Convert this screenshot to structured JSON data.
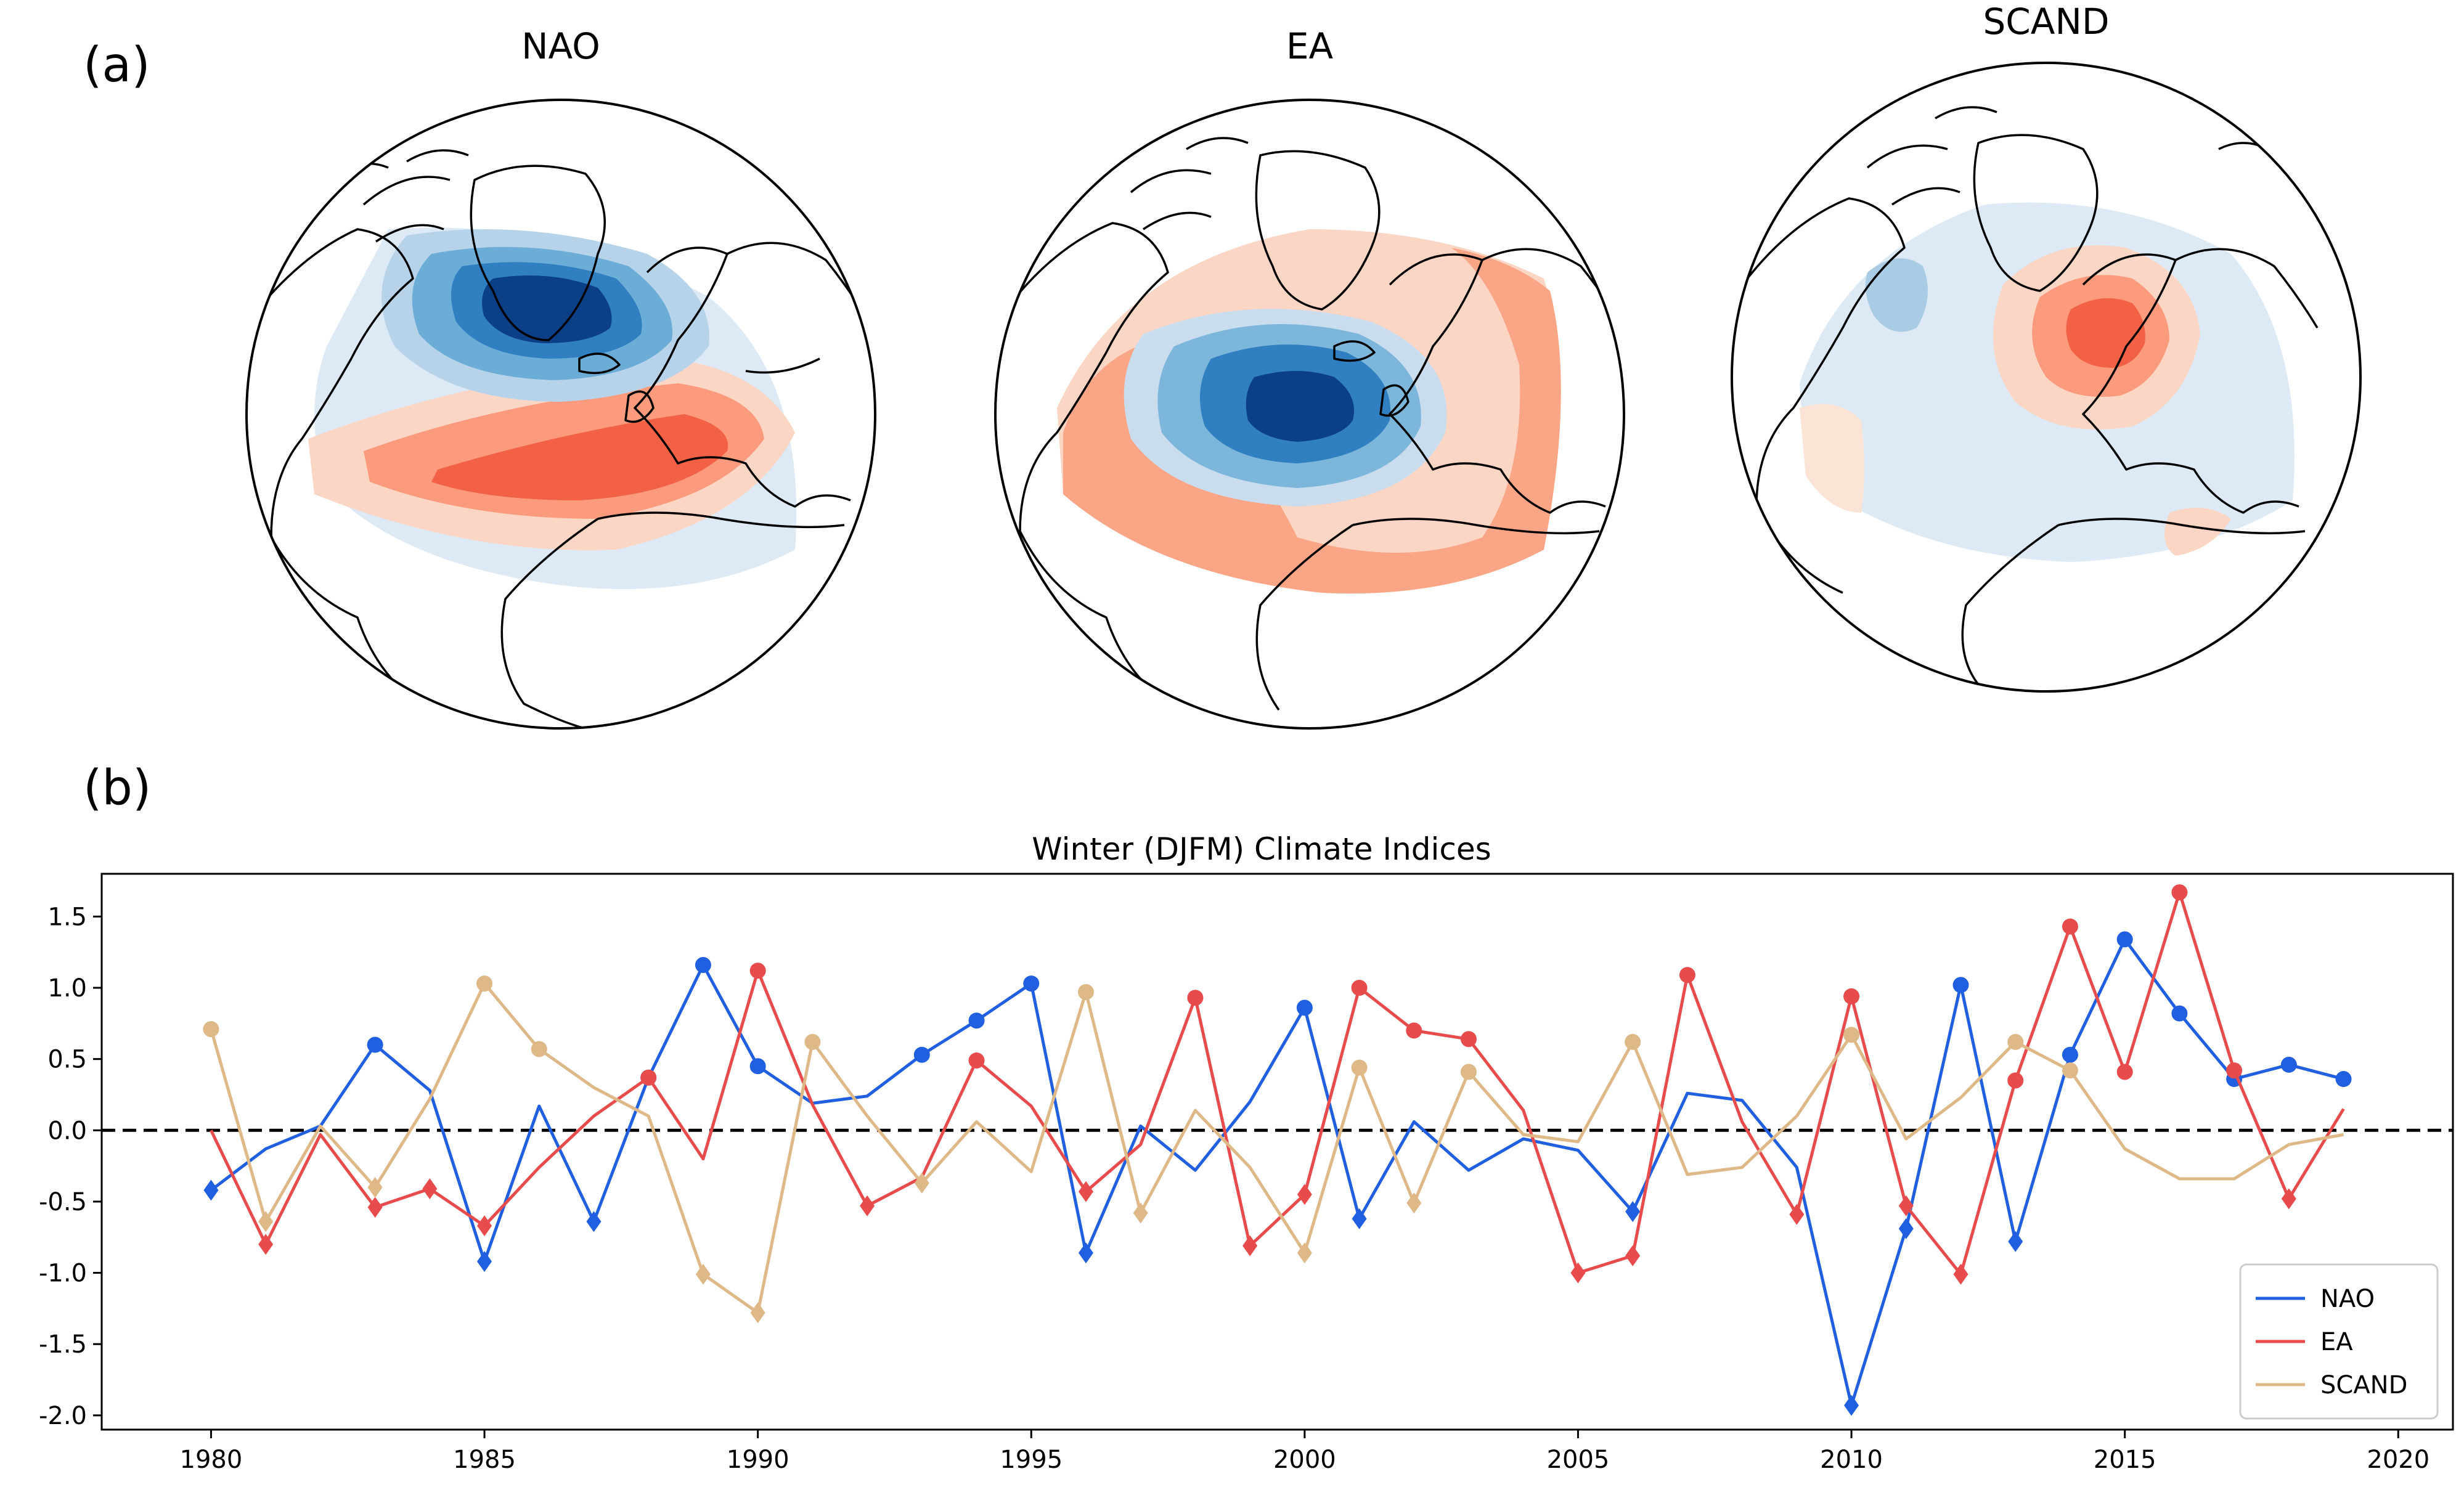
{
  "panel_a": {
    "label": "(a)",
    "maps": [
      {
        "title": "NAO",
        "colors": {
          "neg_dark": "#08306b",
          "neg_mid": "#2171b5",
          "neg_light": "#6baed6",
          "neg_pale": "#c6dbef",
          "pos_pale": "#fdd5c2",
          "pos_mid": "#fb8a6a",
          "pos_dark": "#ef3b2c"
        }
      },
      {
        "title": "EA"
      },
      {
        "title": "SCAND"
      }
    ]
  },
  "panel_b": {
    "label": "(b)"
  },
  "chart_data": {
    "type": "line",
    "title": "Winter (DJFM) Climate Indices",
    "xlabel": "",
    "ylabel": "",
    "xlim": [
      1978,
      2021
    ],
    "ylim": [
      -2.1,
      1.8
    ],
    "xticks": [
      1980,
      1985,
      1990,
      1995,
      2000,
      2005,
      2010,
      2015,
      2020
    ],
    "yticks": [
      -2.0,
      -1.5,
      -1.0,
      -0.5,
      0.0,
      0.5,
      1.0,
      1.5
    ],
    "ytick_labels": [
      "-2.0",
      "-1.5",
      "-1.0",
      "-0.5",
      "0.0",
      "0.5",
      "1.0",
      "1.5"
    ],
    "zero_line": {
      "value": 0.0,
      "style": "dashed",
      "color": "#000000"
    },
    "grid": false,
    "legend_position": "bottom-right",
    "x": [
      1980,
      1981,
      1982,
      1983,
      1984,
      1985,
      1986,
      1987,
      1988,
      1989,
      1990,
      1991,
      1992,
      1993,
      1994,
      1995,
      1996,
      1997,
      1998,
      1999,
      2000,
      2001,
      2002,
      2003,
      2004,
      2005,
      2006,
      2007,
      2008,
      2009,
      2010,
      2011,
      2012,
      2013,
      2014,
      2015,
      2016,
      2017,
      2018,
      2019
    ],
    "series": [
      {
        "name": "NAO",
        "color": "#1f5fe0",
        "values": [
          -0.42,
          -0.13,
          0.03,
          0.6,
          0.28,
          -0.92,
          0.17,
          -0.64,
          0.37,
          1.16,
          0.45,
          0.19,
          0.24,
          0.53,
          0.77,
          1.03,
          -0.86,
          0.03,
          -0.28,
          0.2,
          0.86,
          -0.62,
          0.06,
          -0.28,
          -0.06,
          -0.14,
          -0.57,
          0.26,
          0.21,
          -0.26,
          -1.93,
          -0.69,
          1.02,
          -0.78,
          0.53,
          1.34,
          0.82,
          0.36,
          0.46,
          0.36
        ]
      },
      {
        "name": "EA",
        "color": "#e84b4b",
        "values": [
          0.0,
          -0.8,
          -0.03,
          -0.54,
          -0.41,
          -0.67,
          -0.26,
          0.1,
          0.37,
          -0.2,
          1.12,
          0.18,
          -0.53,
          -0.33,
          0.49,
          0.17,
          -0.43,
          -0.1,
          0.93,
          -0.81,
          -0.45,
          1.0,
          0.7,
          0.64,
          0.14,
          -1.0,
          -0.88,
          1.09,
          0.06,
          -0.59,
          0.94,
          -0.53,
          -1.01,
          0.35,
          1.43,
          0.41,
          1.67,
          0.42,
          -0.48,
          0.15
        ]
      },
      {
        "name": "SCAND",
        "color": "#deb887",
        "values": [
          0.71,
          -0.64,
          0.03,
          -0.4,
          0.22,
          1.03,
          0.57,
          0.3,
          0.1,
          -1.01,
          -1.28,
          0.62,
          0.1,
          -0.37,
          0.06,
          -0.29,
          0.97,
          -0.58,
          0.14,
          -0.26,
          -0.86,
          0.44,
          -0.51,
          0.41,
          -0.03,
          -0.08,
          0.62,
          -0.31,
          -0.26,
          0.1,
          0.67,
          -0.06,
          0.23,
          0.62,
          0.42,
          -0.13,
          -0.34,
          -0.34,
          -0.1,
          -0.03
        ]
      }
    ]
  }
}
